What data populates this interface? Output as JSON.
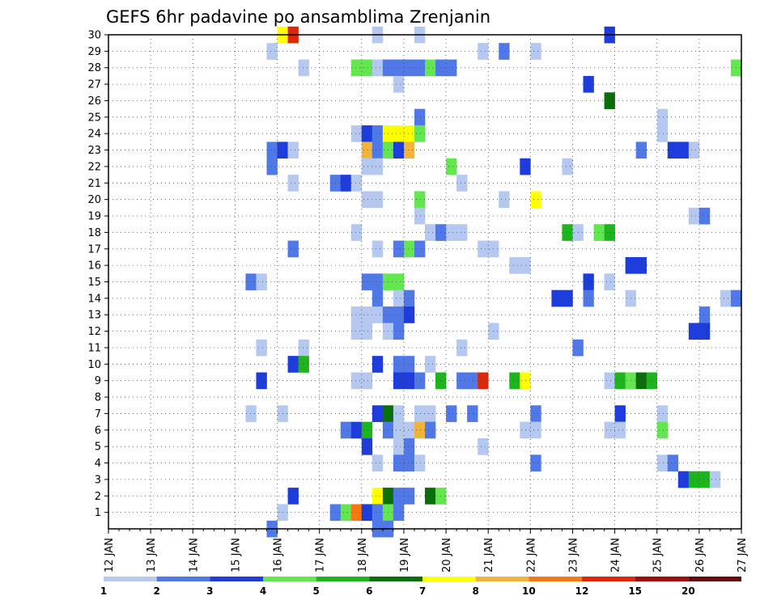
{
  "chart_data": {
    "type": "heatmap",
    "title": "GEFS 6hr padavine po ansamblima Zrenjanin",
    "xlabel": "",
    "ylabel": "",
    "y_ticks": [
      "1",
      "2",
      "3",
      "4",
      "5",
      "6",
      "7",
      "8",
      "9",
      "10",
      "11",
      "12",
      "13",
      "14",
      "15",
      "16",
      "17",
      "18",
      "19",
      "20",
      "21",
      "22",
      "23",
      "24",
      "25",
      "26",
      "27",
      "28",
      "29",
      "30"
    ],
    "x_ticks": [
      "12 JAN",
      "13 JAN",
      "14 JAN",
      "15 JAN",
      "16 JAN",
      "17 JAN",
      "18 JAN",
      "19 JAN",
      "20 JAN",
      "21 JAN",
      "22 JAN",
      "23 JAN",
      "24 JAN",
      "25 JAN",
      "26 JAN",
      "27 JAN"
    ],
    "ylim": [
      0,
      30
    ],
    "grid": true,
    "steps_per_day": 4,
    "legend": {
      "labels": [
        "1",
        "2",
        "3",
        "4",
        "5",
        "6",
        "7",
        "8",
        "10",
        "12",
        "15",
        "20"
      ],
      "colors": [
        "#b4c8f0",
        "#5078e6",
        "#1e3cdc",
        "#64e650",
        "#1eb41e",
        "#0a6e0a",
        "#ffff00",
        "#f0b43c",
        "#f57814",
        "#dc280a",
        "#a00a0a",
        "#640a0a"
      ],
      "placement": "bottom"
    },
    "cells": [
      {
        "member": 30,
        "t": 16,
        "c": 6
      },
      {
        "member": 30,
        "t": 17,
        "c": 9
      },
      {
        "member": 30,
        "t": 25,
        "c": 0
      },
      {
        "member": 30,
        "t": 29,
        "c": 0
      },
      {
        "member": 30,
        "t": 47,
        "c": 2
      },
      {
        "member": 29,
        "t": 15,
        "c": 0
      },
      {
        "member": 29,
        "t": 35,
        "c": 0
      },
      {
        "member": 29,
        "t": 37,
        "c": 1
      },
      {
        "member": 29,
        "t": 40,
        "c": 0
      },
      {
        "member": 28,
        "t": 18,
        "c": 0
      },
      {
        "member": 28,
        "t": 23,
        "c": 3
      },
      {
        "member": 28,
        "t": 24,
        "c": 3
      },
      {
        "member": 28,
        "t": 25,
        "c": 0
      },
      {
        "member": 28,
        "t": 26,
        "c": 1
      },
      {
        "member": 28,
        "t": 27,
        "c": 1
      },
      {
        "member": 28,
        "t": 28,
        "c": 1
      },
      {
        "member": 28,
        "t": 29,
        "c": 1
      },
      {
        "member": 28,
        "t": 30,
        "c": 3
      },
      {
        "member": 28,
        "t": 31,
        "c": 1
      },
      {
        "member": 28,
        "t": 32,
        "c": 1
      },
      {
        "member": 28,
        "t": 59,
        "c": 3
      },
      {
        "member": 27,
        "t": 27,
        "c": 0
      },
      {
        "member": 27,
        "t": 45,
        "c": 2
      },
      {
        "member": 26,
        "t": 47,
        "c": 5
      },
      {
        "member": 25,
        "t": 29,
        "c": 1
      },
      {
        "member": 25,
        "t": 52,
        "c": 0
      },
      {
        "member": 24,
        "t": 23,
        "c": 0
      },
      {
        "member": 24,
        "t": 24,
        "c": 2
      },
      {
        "member": 24,
        "t": 25,
        "c": 1
      },
      {
        "member": 24,
        "t": 26,
        "c": 6
      },
      {
        "member": 24,
        "t": 27,
        "c": 6
      },
      {
        "member": 24,
        "t": 28,
        "c": 6
      },
      {
        "member": 24,
        "t": 29,
        "c": 3
      },
      {
        "member": 24,
        "t": 52,
        "c": 0
      },
      {
        "member": 23,
        "t": 15,
        "c": 1
      },
      {
        "member": 23,
        "t": 16,
        "c": 2
      },
      {
        "member": 23,
        "t": 17,
        "c": 0
      },
      {
        "member": 23,
        "t": 24,
        "c": 7
      },
      {
        "member": 23,
        "t": 25,
        "c": 1
      },
      {
        "member": 23,
        "t": 26,
        "c": 3
      },
      {
        "member": 23,
        "t": 27,
        "c": 2
      },
      {
        "member": 23,
        "t": 28,
        "c": 7
      },
      {
        "member": 23,
        "t": 50,
        "c": 1
      },
      {
        "member": 23,
        "t": 53,
        "c": 2
      },
      {
        "member": 23,
        "t": 54,
        "c": 2
      },
      {
        "member": 23,
        "t": 55,
        "c": 0
      },
      {
        "member": 22,
        "t": 15,
        "c": 1
      },
      {
        "member": 22,
        "t": 24,
        "c": 0
      },
      {
        "member": 22,
        "t": 25,
        "c": 0
      },
      {
        "member": 22,
        "t": 32,
        "c": 3
      },
      {
        "member": 22,
        "t": 39,
        "c": 2
      },
      {
        "member": 22,
        "t": 43,
        "c": 0
      },
      {
        "member": 21,
        "t": 17,
        "c": 0
      },
      {
        "member": 21,
        "t": 21,
        "c": 1
      },
      {
        "member": 21,
        "t": 22,
        "c": 2
      },
      {
        "member": 21,
        "t": 23,
        "c": 0
      },
      {
        "member": 21,
        "t": 33,
        "c": 0
      },
      {
        "member": 20,
        "t": 24,
        "c": 0
      },
      {
        "member": 20,
        "t": 25,
        "c": 0
      },
      {
        "member": 20,
        "t": 29,
        "c": 3
      },
      {
        "member": 20,
        "t": 37,
        "c": 0
      },
      {
        "member": 20,
        "t": 40,
        "c": 6
      },
      {
        "member": 19,
        "t": 29,
        "c": 0
      },
      {
        "member": 19,
        "t": 55,
        "c": 0
      },
      {
        "member": 19,
        "t": 56,
        "c": 1
      },
      {
        "member": 18,
        "t": 23,
        "c": 0
      },
      {
        "member": 18,
        "t": 30,
        "c": 0
      },
      {
        "member": 18,
        "t": 31,
        "c": 1
      },
      {
        "member": 18,
        "t": 32,
        "c": 0
      },
      {
        "member": 18,
        "t": 33,
        "c": 0
      },
      {
        "member": 18,
        "t": 43,
        "c": 4
      },
      {
        "member": 18,
        "t": 44,
        "c": 0
      },
      {
        "member": 18,
        "t": 46,
        "c": 3
      },
      {
        "member": 18,
        "t": 47,
        "c": 4
      },
      {
        "member": 17,
        "t": 17,
        "c": 1
      },
      {
        "member": 17,
        "t": 25,
        "c": 0
      },
      {
        "member": 17,
        "t": 27,
        "c": 1
      },
      {
        "member": 17,
        "t": 28,
        "c": 3
      },
      {
        "member": 17,
        "t": 29,
        "c": 1
      },
      {
        "member": 17,
        "t": 35,
        "c": 0
      },
      {
        "member": 17,
        "t": 36,
        "c": 0
      },
      {
        "member": 16,
        "t": 38,
        "c": 0
      },
      {
        "member": 16,
        "t": 39,
        "c": 0
      },
      {
        "member": 16,
        "t": 49,
        "c": 2
      },
      {
        "member": 16,
        "t": 50,
        "c": 2
      },
      {
        "member": 15,
        "t": 13,
        "c": 1
      },
      {
        "member": 15,
        "t": 14,
        "c": 0
      },
      {
        "member": 15,
        "t": 24,
        "c": 1
      },
      {
        "member": 15,
        "t": 25,
        "c": 1
      },
      {
        "member": 15,
        "t": 26,
        "c": 3
      },
      {
        "member": 15,
        "t": 27,
        "c": 3
      },
      {
        "member": 15,
        "t": 45,
        "c": 2
      },
      {
        "member": 15,
        "t": 47,
        "c": 0
      },
      {
        "member": 14,
        "t": 25,
        "c": 1
      },
      {
        "member": 14,
        "t": 27,
        "c": 0
      },
      {
        "member": 14,
        "t": 28,
        "c": 1
      },
      {
        "member": 14,
        "t": 42,
        "c": 2
      },
      {
        "member": 14,
        "t": 43,
        "c": 2
      },
      {
        "member": 14,
        "t": 45,
        "c": 1
      },
      {
        "member": 14,
        "t": 49,
        "c": 0
      },
      {
        "member": 14,
        "t": 58,
        "c": 0
      },
      {
        "member": 14,
        "t": 59,
        "c": 1
      },
      {
        "member": 13,
        "t": 23,
        "c": 0
      },
      {
        "member": 13,
        "t": 24,
        "c": 0
      },
      {
        "member": 13,
        "t": 25,
        "c": 0
      },
      {
        "member": 13,
        "t": 26,
        "c": 1
      },
      {
        "member": 13,
        "t": 27,
        "c": 1
      },
      {
        "member": 13,
        "t": 28,
        "c": 2
      },
      {
        "member": 13,
        "t": 56,
        "c": 1
      },
      {
        "member": 12,
        "t": 23,
        "c": 0
      },
      {
        "member": 12,
        "t": 24,
        "c": 0
      },
      {
        "member": 12,
        "t": 26,
        "c": 0
      },
      {
        "member": 12,
        "t": 27,
        "c": 1
      },
      {
        "member": 12,
        "t": 36,
        "c": 0
      },
      {
        "member": 12,
        "t": 55,
        "c": 2
      },
      {
        "member": 12,
        "t": 56,
        "c": 2
      },
      {
        "member": 11,
        "t": 18,
        "c": 0
      },
      {
        "member": 11,
        "t": 14,
        "c": 0
      },
      {
        "member": 11,
        "t": 33,
        "c": 0
      },
      {
        "member": 11,
        "t": 44,
        "c": 1
      },
      {
        "member": 10,
        "t": 17,
        "c": 2
      },
      {
        "member": 10,
        "t": 18,
        "c": 4
      },
      {
        "member": 10,
        "t": 25,
        "c": 2
      },
      {
        "member": 10,
        "t": 27,
        "c": 1
      },
      {
        "member": 10,
        "t": 28,
        "c": 1
      },
      {
        "member": 10,
        "t": 30,
        "c": 0
      },
      {
        "member": 9,
        "t": 14,
        "c": 2
      },
      {
        "member": 9,
        "t": 23,
        "c": 0
      },
      {
        "member": 9,
        "t": 24,
        "c": 0
      },
      {
        "member": 9,
        "t": 27,
        "c": 2
      },
      {
        "member": 9,
        "t": 28,
        "c": 2
      },
      {
        "member": 9,
        "t": 29,
        "c": 1
      },
      {
        "member": 9,
        "t": 31,
        "c": 4
      },
      {
        "member": 9,
        "t": 33,
        "c": 1
      },
      {
        "member": 9,
        "t": 34,
        "c": 1
      },
      {
        "member": 9,
        "t": 35,
        "c": 9
      },
      {
        "member": 9,
        "t": 38,
        "c": 4
      },
      {
        "member": 9,
        "t": 39,
        "c": 6
      },
      {
        "member": 9,
        "t": 47,
        "c": 0
      },
      {
        "member": 9,
        "t": 48,
        "c": 4
      },
      {
        "member": 9,
        "t": 49,
        "c": 3
      },
      {
        "member": 9,
        "t": 50,
        "c": 5
      },
      {
        "member": 9,
        "t": 51,
        "c": 4
      },
      {
        "member": 7,
        "t": 13,
        "c": 0
      },
      {
        "member": 7,
        "t": 16,
        "c": 0
      },
      {
        "member": 7,
        "t": 25,
        "c": 2
      },
      {
        "member": 7,
        "t": 26,
        "c": 5
      },
      {
        "member": 7,
        "t": 27,
        "c": 0
      },
      {
        "member": 7,
        "t": 29,
        "c": 0
      },
      {
        "member": 7,
        "t": 30,
        "c": 0
      },
      {
        "member": 7,
        "t": 32,
        "c": 1
      },
      {
        "member": 7,
        "t": 34,
        "c": 1
      },
      {
        "member": 7,
        "t": 40,
        "c": 1
      },
      {
        "member": 7,
        "t": 48,
        "c": 2
      },
      {
        "member": 7,
        "t": 52,
        "c": 0
      },
      {
        "member": 6,
        "t": 22,
        "c": 1
      },
      {
        "member": 6,
        "t": 23,
        "c": 2
      },
      {
        "member": 6,
        "t": 24,
        "c": 4
      },
      {
        "member": 6,
        "t": 26,
        "c": 1
      },
      {
        "member": 6,
        "t": 27,
        "c": 0
      },
      {
        "member": 6,
        "t": 28,
        "c": 0
      },
      {
        "member": 6,
        "t": 29,
        "c": 7
      },
      {
        "member": 6,
        "t": 30,
        "c": 1
      },
      {
        "member": 6,
        "t": 39,
        "c": 0
      },
      {
        "member": 6,
        "t": 40,
        "c": 0
      },
      {
        "member": 6,
        "t": 47,
        "c": 0
      },
      {
        "member": 6,
        "t": 48,
        "c": 0
      },
      {
        "member": 6,
        "t": 52,
        "c": 3
      },
      {
        "member": 5,
        "t": 24,
        "c": 2
      },
      {
        "member": 5,
        "t": 27,
        "c": 0
      },
      {
        "member": 5,
        "t": 28,
        "c": 1
      },
      {
        "member": 5,
        "t": 35,
        "c": 0
      },
      {
        "member": 4,
        "t": 25,
        "c": 0
      },
      {
        "member": 4,
        "t": 27,
        "c": 1
      },
      {
        "member": 4,
        "t": 28,
        "c": 1
      },
      {
        "member": 4,
        "t": 29,
        "c": 0
      },
      {
        "member": 4,
        "t": 40,
        "c": 1
      },
      {
        "member": 4,
        "t": 52,
        "c": 0
      },
      {
        "member": 4,
        "t": 53,
        "c": 1
      },
      {
        "member": 3,
        "t": 54,
        "c": 2
      },
      {
        "member": 3,
        "t": 55,
        "c": 4
      },
      {
        "member": 3,
        "t": 56,
        "c": 4
      },
      {
        "member": 3,
        "t": 57,
        "c": 0
      },
      {
        "member": 2,
        "t": 17,
        "c": 2
      },
      {
        "member": 2,
        "t": 25,
        "c": 6
      },
      {
        "member": 2,
        "t": 26,
        "c": 5
      },
      {
        "member": 2,
        "t": 27,
        "c": 1
      },
      {
        "member": 2,
        "t": 28,
        "c": 1
      },
      {
        "member": 2,
        "t": 30,
        "c": 5
      },
      {
        "member": 2,
        "t": 31,
        "c": 3
      },
      {
        "member": 1,
        "t": 16,
        "c": 0
      },
      {
        "member": 1,
        "t": 21,
        "c": 1
      },
      {
        "member": 1,
        "t": 22,
        "c": 3
      },
      {
        "member": 1,
        "t": 23,
        "c": 8
      },
      {
        "member": 1,
        "t": 24,
        "c": 2
      },
      {
        "member": 1,
        "t": 25,
        "c": 1
      },
      {
        "member": 1,
        "t": 26,
        "c": 3
      },
      {
        "member": 1,
        "t": 27,
        "c": 1
      },
      {
        "member": 0,
        "t": 15,
        "c": 1
      },
      {
        "member": 0,
        "t": 25,
        "c": 1
      },
      {
        "member": 0,
        "t": 26,
        "c": 1
      }
    ]
  }
}
